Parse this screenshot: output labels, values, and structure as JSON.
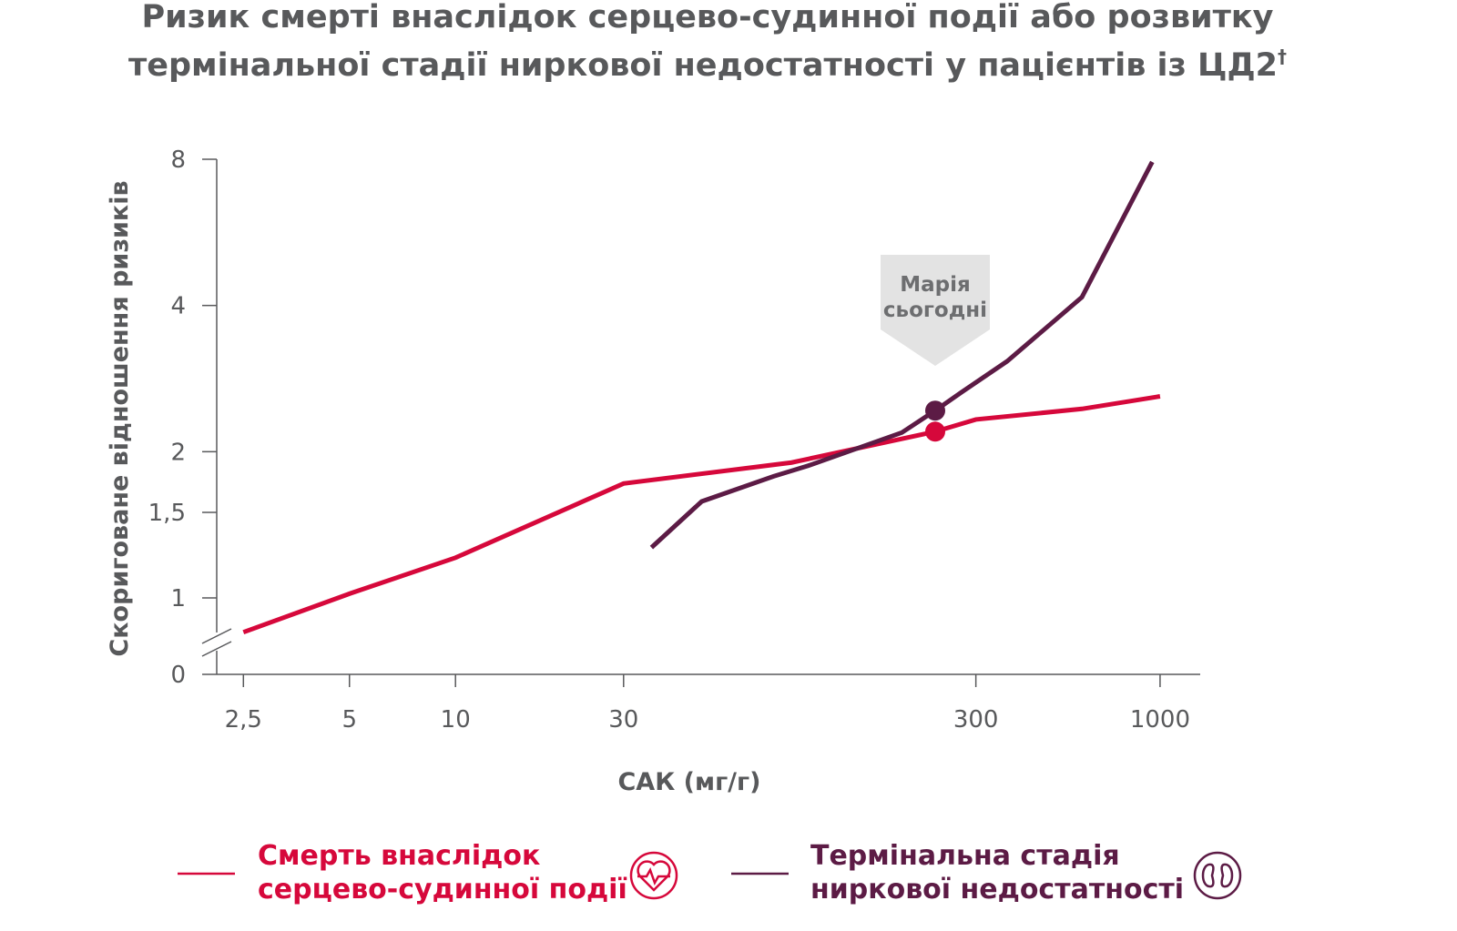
{
  "chart_data": {
    "type": "line",
    "title": [
      "Ризик смерті внаслідок серцево-судинної події або розвитку",
      "термінальної стадії ниркової недостатності у пацієнтів із ЦД2"
    ],
    "title_mark": "†",
    "x_label": "САК (мг/г)",
    "y_label": "Скориговане відношення ризиків",
    "x_scale": "log",
    "y_scale": "log",
    "y_axis_break": true,
    "xlim": [
      2.1,
      1300
    ],
    "ylim": [
      0,
      8
    ],
    "xticks": [
      {
        "value": 2.5,
        "label": "2,5"
      },
      5,
      10,
      30,
      300,
      1000
    ],
    "yticks": [
      0,
      1,
      {
        "value": 1.5,
        "label": "1,5"
      },
      2,
      4,
      8
    ],
    "series": [
      {
        "name": "Смерть внаслідок серцево-судинної події",
        "color": "#d6083b",
        "x": [
          2.5,
          5,
          10,
          30,
          90,
          230,
          300,
          600,
          1000
        ],
        "values": [
          0.85,
          1.02,
          1.21,
          1.72,
          1.9,
          2.2,
          2.33,
          2.45,
          2.6
        ]
      },
      {
        "name": "Термінальна стадія ниркової недостатності",
        "color": "#5c1b45",
        "x": [
          36,
          50,
          80,
          100,
          185,
          230,
          273,
          368,
          600,
          950
        ],
        "values": [
          1.27,
          1.58,
          1.78,
          1.87,
          2.19,
          2.43,
          2.65,
          3.07,
          4.16,
          7.9
        ]
      }
    ],
    "annotation": {
      "text": [
        "Марія",
        "сьогодні"
      ],
      "x": 230
    }
  }
}
